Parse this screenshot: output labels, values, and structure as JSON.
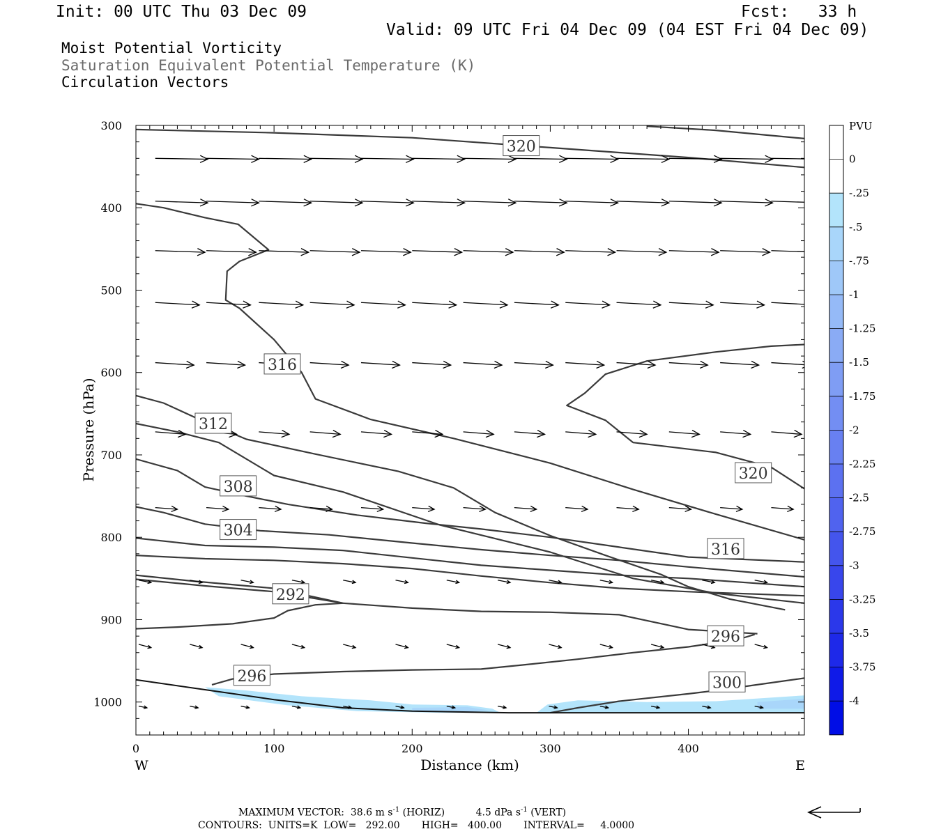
{
  "header": {
    "init": "Init: 00 UTC Thu 03 Dec 09",
    "fcst": "Fcst:   33 h",
    "valid": "Valid: 09 UTC Fri 04 Dec 09 (04 EST Fri 04 Dec 09)",
    "field1": "Moist Potential Vorticity",
    "field2": "Saturation Equivalent Potential Temperature (K)",
    "field3": "Circulation Vectors"
  },
  "footer": {
    "max_vector_label": "MAXIMUM VECTOR:",
    "max_horiz_value": "38.6",
    "horiz_units": "m s",
    "horiz_tag": "(HORIZ)",
    "max_vert_value": "4.5",
    "vert_units": "dPa s",
    "vert_tag": "(VERT)",
    "exponent": "-1",
    "contours_line": "CONTOURS:  UNITS=K  LOW=   292.00       HIGH=   400.00       INTERVAL=     4.0000"
  },
  "chart_data": {
    "type": "cross-section",
    "xlabel": "Distance (km)",
    "ylabel": "Pressure (hPa)",
    "xlim": [
      0,
      484
    ],
    "ylim": [
      1040,
      300
    ],
    "x_ticks": [
      0,
      100,
      200,
      300,
      400
    ],
    "y_ticks": [
      300,
      400,
      500,
      600,
      700,
      800,
      900,
      1000
    ],
    "west_label": "W",
    "east_label": "E",
    "colorbar": {
      "title": "PVU",
      "levels": [
        "0",
        "-.25",
        "-.5",
        "-.75",
        "-1",
        "-1.25",
        "-1.5",
        "-1.75",
        "-2",
        "-2.25",
        "-2.5",
        "-2.75",
        "-3",
        "-3.25",
        "-3.5",
        "-3.75",
        "-4"
      ],
      "colors": [
        "#ffffff",
        "#ffffff",
        "#b3e4fb",
        "#a9d6fa",
        "#9fc8f8",
        "#95baf7",
        "#8aabf5",
        "#7f9df4",
        "#738ef3",
        "#6880f1",
        "#5c71f0",
        "#5063ef",
        "#4455ed",
        "#3846ec",
        "#2b38ea",
        "#1e29e9",
        "#0f1ae8",
        "#000de6"
      ]
    },
    "ground": [
      [
        0,
        973
      ],
      [
        50,
        985
      ],
      [
        100,
        997
      ],
      [
        150,
        1007
      ],
      [
        200,
        1011
      ],
      [
        270,
        1013
      ],
      [
        340,
        1013
      ],
      [
        484,
        1013
      ]
    ],
    "pv_shading": [
      {
        "color": "#b3e4fb",
        "points": [
          [
            50,
            982
          ],
          [
            80,
            986
          ],
          [
            120,
            993
          ],
          [
            170,
            998
          ],
          [
            200,
            1003
          ],
          [
            240,
            1004
          ],
          [
            258,
            1008
          ],
          [
            264,
            1013
          ],
          [
            220,
            1013
          ],
          [
            160,
            1011
          ],
          [
            110,
            1004
          ],
          [
            60,
            993
          ]
        ]
      },
      {
        "color": "#b3e4fb",
        "points": [
          [
            290,
            1013
          ],
          [
            298,
            1003
          ],
          [
            320,
            998
          ],
          [
            370,
            1000
          ],
          [
            420,
            999
          ],
          [
            484,
            992
          ],
          [
            484,
            1013
          ]
        ]
      },
      {
        "color": "#a9d6fa",
        "points": [
          [
            200,
            1007
          ],
          [
            240,
            1006
          ],
          [
            255,
            1010
          ],
          [
            240,
            1012
          ],
          [
            200,
            1011
          ]
        ]
      },
      {
        "color": "#a9d6fa",
        "points": [
          [
            450,
            1000
          ],
          [
            484,
            996
          ],
          [
            484,
            1008
          ],
          [
            450,
            1008
          ]
        ]
      }
    ],
    "theta_es_contours": [
      {
        "value": 320,
        "points": [
          [
            0,
            305
          ],
          [
            100,
            309
          ],
          [
            200,
            315
          ],
          [
            300,
            327
          ],
          [
            400,
            339
          ],
          [
            484,
            351
          ]
        ]
      },
      {
        "value": 320,
        "points": [
          [
            370,
            301
          ],
          [
            420,
            306
          ],
          [
            484,
            316
          ]
        ]
      },
      {
        "value": 320,
        "points": [
          [
            0,
            395
          ],
          [
            20,
            400
          ],
          [
            50,
            412
          ],
          [
            74,
            420
          ],
          [
            96,
            451
          ],
          [
            75,
            465
          ],
          [
            66,
            477
          ],
          [
            65,
            512
          ],
          [
            75,
            522
          ],
          [
            100,
            560
          ],
          [
            120,
            600
          ],
          [
            130,
            632
          ],
          [
            170,
            657
          ],
          [
            230,
            680
          ],
          [
            300,
            710
          ],
          [
            360,
            742
          ],
          [
            420,
            772
          ],
          [
            484,
            803
          ]
        ]
      },
      {
        "value": 320,
        "points": [
          [
            484,
            566
          ],
          [
            460,
            568
          ],
          [
            420,
            575
          ],
          [
            370,
            586
          ],
          [
            340,
            602
          ],
          [
            325,
            625
          ],
          [
            312,
            640
          ],
          [
            340,
            658
          ],
          [
            360,
            685
          ],
          [
            420,
            697
          ],
          [
            460,
            715
          ],
          [
            484,
            741
          ]
        ]
      },
      {
        "value": 316,
        "points": [
          [
            0,
            628
          ],
          [
            20,
            637
          ],
          [
            50,
            660
          ],
          [
            80,
            681
          ],
          [
            130,
            699
          ],
          [
            190,
            720
          ],
          [
            230,
            740
          ],
          [
            260,
            770
          ],
          [
            300,
            798
          ],
          [
            340,
            822
          ],
          [
            380,
            845
          ],
          [
            400,
            860
          ],
          [
            430,
            875
          ],
          [
            470,
            888
          ]
        ]
      },
      {
        "value": 312,
        "points": [
          [
            0,
            662
          ],
          [
            30,
            672
          ],
          [
            60,
            685
          ],
          [
            100,
            725
          ],
          [
            150,
            745
          ],
          [
            220,
            785
          ],
          [
            300,
            818
          ],
          [
            360,
            850
          ],
          [
            420,
            868
          ],
          [
            484,
            880
          ]
        ]
      },
      {
        "value": 308,
        "points": [
          [
            0,
            705
          ],
          [
            30,
            719
          ],
          [
            50,
            739
          ],
          [
            80,
            750
          ],
          [
            110,
            760
          ],
          [
            160,
            773
          ],
          [
            210,
            783
          ],
          [
            250,
            790
          ],
          [
            300,
            800
          ],
          [
            350,
            812
          ],
          [
            400,
            824
          ],
          [
            484,
            830
          ]
        ]
      },
      {
        "value": 304,
        "points": [
          [
            0,
            763
          ],
          [
            20,
            770
          ],
          [
            50,
            784
          ],
          [
            90,
            792
          ],
          [
            140,
            797
          ],
          [
            200,
            807
          ],
          [
            250,
            815
          ],
          [
            300,
            822
          ],
          [
            350,
            828
          ],
          [
            400,
            836
          ],
          [
            484,
            848
          ]
        ]
      },
      {
        "value": 300,
        "points": [
          [
            0,
            801
          ],
          [
            50,
            810
          ],
          [
            100,
            812
          ],
          [
            150,
            816
          ],
          [
            200,
            825
          ],
          [
            250,
            834
          ],
          [
            300,
            840
          ],
          [
            350,
            846
          ],
          [
            400,
            850
          ],
          [
            484,
            860
          ]
        ]
      },
      {
        "value": 296,
        "points": [
          [
            0,
            822
          ],
          [
            50,
            826
          ],
          [
            100,
            828
          ],
          [
            150,
            832
          ],
          [
            200,
            838
          ],
          [
            250,
            847
          ],
          [
            300,
            855
          ],
          [
            350,
            862
          ],
          [
            400,
            866
          ],
          [
            484,
            871
          ]
        ]
      },
      {
        "value": 292,
        "points": [
          [
            0,
            846
          ],
          [
            40,
            853
          ],
          [
            100,
            862
          ],
          [
            150,
            880
          ],
          [
            130,
            882
          ],
          [
            110,
            889
          ],
          [
            100,
            898
          ],
          [
            70,
            905
          ],
          [
            30,
            909
          ],
          [
            0,
            911
          ]
        ]
      },
      {
        "value": 296,
        "points": [
          [
            0,
            851
          ],
          [
            50,
            859
          ],
          [
            100,
            866
          ],
          [
            150,
            880
          ],
          [
            200,
            886
          ],
          [
            250,
            890
          ],
          [
            300,
            891
          ],
          [
            350,
            894
          ],
          [
            400,
            912
          ],
          [
            450,
            917
          ]
        ]
      },
      {
        "value": 296,
        "points": [
          [
            55,
            979
          ],
          [
            70,
            972
          ],
          [
            100,
            966
          ],
          [
            150,
            963
          ],
          [
            200,
            961
          ],
          [
            250,
            960
          ],
          [
            280,
            955
          ],
          [
            320,
            948
          ],
          [
            360,
            940
          ],
          [
            400,
            933
          ],
          [
            420,
            928
          ],
          [
            440,
            922
          ],
          [
            448,
            918
          ]
        ]
      },
      {
        "value": 300,
        "points": [
          [
            300,
            1013
          ],
          [
            320,
            1007
          ],
          [
            350,
            999
          ],
          [
            400,
            990
          ],
          [
            420,
            986
          ],
          [
            484,
            971
          ]
        ]
      }
    ],
    "contour_labels": [
      {
        "text": "320",
        "x": 279,
        "p": 325
      },
      {
        "text": "316",
        "x": 106,
        "p": 590
      },
      {
        "text": "312",
        "x": 56,
        "p": 662
      },
      {
        "text": "308",
        "x": 74,
        "p": 738
      },
      {
        "text": "304",
        "x": 74,
        "p": 791
      },
      {
        "text": "292",
        "x": 112,
        "p": 869
      },
      {
        "text": "296",
        "x": 84,
        "p": 968
      },
      {
        "text": "320",
        "x": 447,
        "p": 722
      },
      {
        "text": "316",
        "x": 427,
        "p": 814
      },
      {
        "text": "296",
        "x": 427,
        "p": 920
      },
      {
        "text": "300",
        "x": 428,
        "p": 976
      }
    ],
    "vector_rows": [
      {
        "p": 340,
        "len": 38,
        "dp": 1,
        "xs": [
          14,
          51,
          89,
          126,
          163,
          200,
          237,
          274,
          311,
          348,
          386,
          423,
          460
        ]
      },
      {
        "p": 392,
        "len": 38,
        "dp": 2,
        "xs": [
          14,
          51,
          89,
          126,
          163,
          200,
          237,
          274,
          311,
          348,
          386,
          423,
          460
        ]
      },
      {
        "p": 452,
        "len": 36,
        "dp": 2,
        "xs": [
          14,
          51,
          89,
          126,
          163,
          200,
          237,
          274,
          311,
          348,
          386,
          423,
          460
        ]
      },
      {
        "p": 515,
        "len": 32,
        "dp": 3,
        "xs": [
          14,
          51,
          89,
          126,
          163,
          200,
          237,
          274,
          311,
          348,
          386,
          423,
          460
        ]
      },
      {
        "p": 588,
        "len": 28,
        "dp": 3,
        "xs": [
          14,
          51,
          89,
          126,
          163,
          200,
          237,
          274,
          311,
          348,
          386,
          423,
          460
        ]
      },
      {
        "p": 672,
        "len": 22,
        "dp": 3,
        "xs": [
          14,
          51,
          89,
          126,
          163,
          200,
          237,
          274,
          311,
          348,
          386,
          423,
          460
        ]
      },
      {
        "p": 764,
        "len": 16,
        "dp": 2,
        "xs": [
          14,
          51,
          89,
          126,
          163,
          200,
          237,
          274,
          311,
          348,
          386,
          423,
          460
        ]
      },
      {
        "p": 852,
        "len": 9,
        "dp": 3,
        "xs": [
          2,
          39,
          76,
          113,
          150,
          188,
          225,
          262,
          299,
          336,
          373,
          410,
          448
        ]
      },
      {
        "p": 930,
        "len": 9,
        "dp": 4,
        "xs": [
          2,
          39,
          76,
          113,
          150,
          188,
          225,
          262,
          299,
          336,
          373,
          410,
          448
        ]
      },
      {
        "p": 1005,
        "len": 6,
        "dp": 2,
        "xs": [
          2,
          39,
          76,
          113,
          150,
          188,
          225,
          262,
          299,
          336,
          373,
          410,
          448
        ]
      }
    ]
  }
}
